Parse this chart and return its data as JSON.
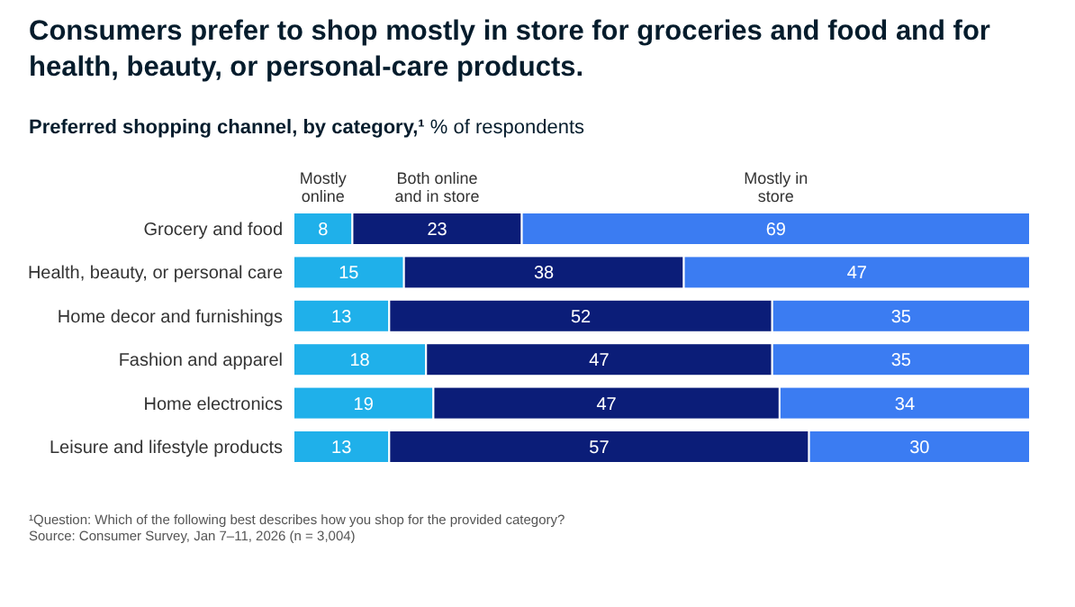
{
  "chart_data": {
    "type": "bar",
    "orientation": "horizontal",
    "stacked": true,
    "title": "Consumers prefer to shop mostly in store for groceries and food and for health, beauty, or personal-care products.",
    "subtitle": "Preferred shopping channel, by category,¹ % of respondents",
    "categories": [
      "Grocery and food",
      "Health, beauty, or personal care",
      "Home decor and furnishings",
      "Fashion and apparel",
      "Home electronics",
      "Leisure and lifestyle products"
    ],
    "series": [
      {
        "name": "Mostly online",
        "color": "#1fb0ea",
        "values": [
          8,
          15,
          13,
          18,
          19,
          13
        ]
      },
      {
        "name": "Both online and in store",
        "color": "#0b1d78",
        "values": [
          23,
          38,
          52,
          47,
          47,
          57
        ]
      },
      {
        "name": "Mostly in store",
        "color": "#3b7cf2",
        "values": [
          69,
          47,
          35,
          35,
          34,
          30
        ]
      }
    ],
    "tick_labels": "y",
    "data_labels": true,
    "legend": "top",
    "annotations": [
      "¹Question: Which of the following best describes how you shop for the provided category?",
      "Source: Consumer Survey, Jan 7–11, 2026 (n = 3,004)"
    ]
  }
}
